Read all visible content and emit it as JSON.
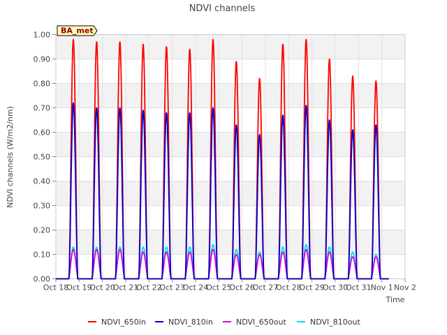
{
  "chart_data": {
    "type": "line",
    "title": "NDVI channels",
    "xlabel": "Time",
    "ylabel": "NDVI channels (W/m2/nm)",
    "badge": "BA_met",
    "ylim": [
      0,
      1.0
    ],
    "xlim": [
      0,
      15
    ],
    "yticks": [
      0.0,
      0.1,
      0.2,
      0.3,
      0.4,
      0.5,
      0.6,
      0.7,
      0.8,
      0.9,
      1.0
    ],
    "ytick_labels": [
      "0.00",
      "0.10",
      "0.20",
      "0.30",
      "0.40",
      "0.50",
      "0.60",
      "0.70",
      "0.80",
      "0.90",
      "1.00"
    ],
    "xtick_labels": [
      "Oct 18",
      "Oct 19",
      "Oct 20",
      "Oct 21",
      "Oct 22",
      "Oct 23",
      "Oct 24",
      "Oct 25",
      "Oct 26",
      "Oct 27",
      "Oct 28",
      "Oct 29",
      "Oct 30",
      "Oct 31",
      "Nov 1",
      "Nov 2"
    ],
    "day_centers": [
      0.75,
      1.75,
      2.75,
      3.75,
      4.75,
      5.75,
      6.75,
      7.75,
      8.75,
      9.75,
      10.75,
      11.75,
      12.75,
      13.75
    ],
    "series": [
      {
        "name": "NDVI_650in",
        "color": "#ff0000",
        "peaks": [
          0.98,
          0.97,
          0.97,
          0.96,
          0.95,
          0.94,
          0.98,
          0.89,
          0.82,
          0.96,
          0.98,
          0.9,
          0.83,
          0.81
        ]
      },
      {
        "name": "NDVI_810in",
        "color": "#0000cc",
        "peaks": [
          0.72,
          0.7,
          0.7,
          0.69,
          0.68,
          0.68,
          0.7,
          0.63,
          0.59,
          0.67,
          0.71,
          0.65,
          0.61,
          0.63
        ]
      },
      {
        "name": "NDVI_650out",
        "color": "#dd00dd",
        "peaks": [
          0.12,
          0.12,
          0.12,
          0.11,
          0.11,
          0.11,
          0.12,
          0.1,
          0.1,
          0.11,
          0.12,
          0.11,
          0.09,
          0.09
        ]
      },
      {
        "name": "NDVI_810out",
        "color": "#00e0ee",
        "peaks": [
          0.13,
          0.13,
          0.13,
          0.13,
          0.13,
          0.13,
          0.14,
          0.12,
          0.11,
          0.13,
          0.14,
          0.13,
          0.11,
          0.1
        ]
      }
    ]
  }
}
